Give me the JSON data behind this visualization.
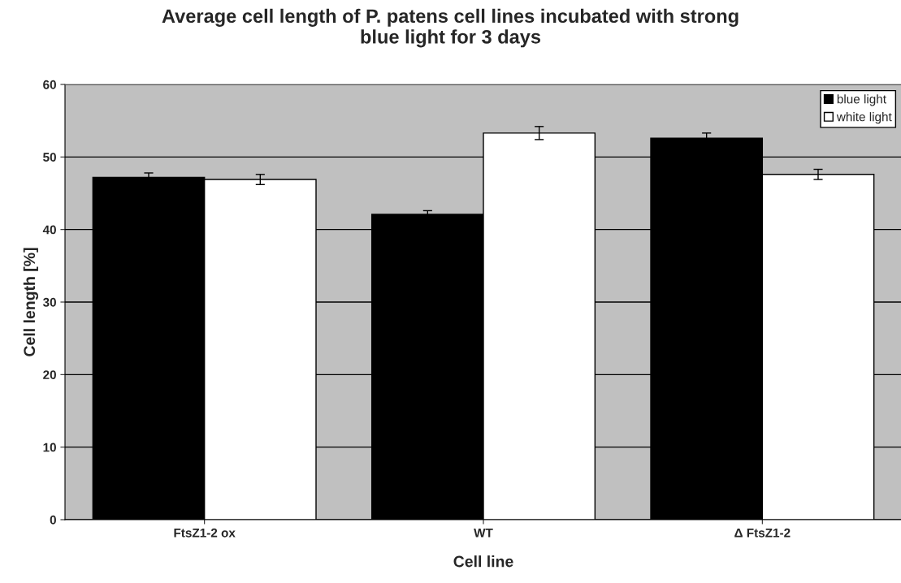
{
  "chart_data": {
    "type": "bar",
    "title": "Average cell length of P. patens cell lines incubated with strong\nblue light for 3 days",
    "xlabel": "Cell line",
    "ylabel": "Cell length [%]",
    "categories": [
      "FtsZ1-2 ox",
      "WT",
      "Δ FtsZ1-2"
    ],
    "series": [
      {
        "name": "blue light",
        "color": "#000000",
        "values": [
          47.2,
          42.1,
          52.6
        ],
        "errors": [
          0.6,
          0.5,
          0.7
        ]
      },
      {
        "name": "white light",
        "color": "#ffffff",
        "values": [
          46.9,
          53.3,
          47.6
        ],
        "errors": [
          0.7,
          0.9,
          0.7
        ]
      }
    ],
    "ylim": [
      0,
      60
    ],
    "yticks": [
      0,
      10,
      20,
      30,
      40,
      50,
      60
    ],
    "grid": "y",
    "legend": "top right"
  }
}
